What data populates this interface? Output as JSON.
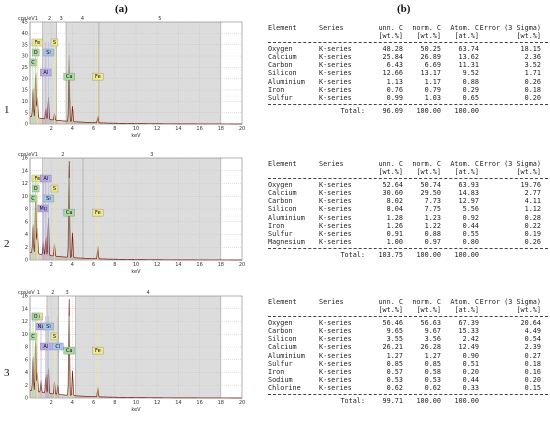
{
  "figure": {
    "col_a": "(a)",
    "col_b": "(b)",
    "row_labels": [
      "1",
      "2",
      "3"
    ]
  },
  "chart_data": [
    {
      "type": "line",
      "panel": "1",
      "ylabel": "cps/eV",
      "xlabel": "keV",
      "xlim": [
        0,
        20
      ],
      "ylim": [
        0,
        45
      ],
      "x_ticks": [
        2,
        4,
        6,
        8,
        10,
        12,
        14,
        16,
        18,
        20
      ],
      "y_ticks": [
        0,
        5,
        10,
        15,
        20,
        25,
        30,
        35,
        40,
        45
      ],
      "region_labels": [
        "1",
        "2",
        "3",
        "4",
        "5"
      ],
      "region_bounds": [
        0,
        1.2,
        2.5,
        3.4,
        6.5,
        18
      ],
      "element_tags": [
        "Fe",
        "O",
        "C",
        "Al",
        "S",
        "Si",
        "Ca",
        "Fe"
      ],
      "peaks": [
        {
          "x": 0.28,
          "y": 14
        },
        {
          "x": 0.53,
          "y": 22
        },
        {
          "x": 0.7,
          "y": 9
        },
        {
          "x": 1.49,
          "y": 5
        },
        {
          "x": 1.74,
          "y": 10
        },
        {
          "x": 2.31,
          "y": 3
        },
        {
          "x": 3.69,
          "y": 30
        },
        {
          "x": 4.01,
          "y": 7
        },
        {
          "x": 6.4,
          "y": 3
        }
      ]
    },
    {
      "type": "line",
      "panel": "2",
      "ylabel": "cps/eV",
      "xlabel": "keV",
      "xlim": [
        0,
        20
      ],
      "ylim": [
        0,
        16
      ],
      "x_ticks": [
        2,
        4,
        6,
        8,
        10,
        12,
        14,
        16,
        18,
        20
      ],
      "y_ticks": [
        0,
        2,
        4,
        6,
        8,
        10,
        12,
        14,
        16
      ],
      "region_labels": [
        "1",
        "2",
        "3"
      ],
      "region_bounds": [
        0,
        1.2,
        5.0,
        18
      ],
      "element_tags": [
        "Fe",
        "O",
        "C",
        "Mg",
        "Al",
        "S",
        "Si",
        "Ca",
        "Fe"
      ],
      "peaks": [
        {
          "x": 0.28,
          "y": 5
        },
        {
          "x": 0.53,
          "y": 10
        },
        {
          "x": 0.7,
          "y": 4
        },
        {
          "x": 1.25,
          "y": 2
        },
        {
          "x": 1.49,
          "y": 3
        },
        {
          "x": 1.74,
          "y": 6
        },
        {
          "x": 2.31,
          "y": 2
        },
        {
          "x": 3.69,
          "y": 15.5
        },
        {
          "x": 4.01,
          "y": 4
        },
        {
          "x": 6.4,
          "y": 2
        }
      ]
    },
    {
      "type": "line",
      "panel": "3",
      "ylabel": "cps/eV",
      "xlabel": "keV",
      "xlim": [
        0,
        20
      ],
      "ylim": [
        0,
        16
      ],
      "x_ticks": [
        2,
        4,
        6,
        8,
        10,
        12,
        14,
        16,
        18,
        20
      ],
      "y_ticks": [
        0,
        2,
        4,
        6,
        8,
        10,
        12,
        14,
        16
      ],
      "region_labels": [
        "1",
        "2",
        "3",
        "4"
      ],
      "region_bounds": [
        0,
        1.6,
        2.7,
        4.3,
        18
      ],
      "element_tags": [
        "Fe",
        "Na",
        "C",
        "Al",
        "O",
        "Si",
        "S",
        "Cl",
        "Ca",
        "Fe"
      ],
      "peaks": [
        {
          "x": 0.28,
          "y": 6
        },
        {
          "x": 0.53,
          "y": 9
        },
        {
          "x": 0.7,
          "y": 3
        },
        {
          "x": 1.04,
          "y": 2
        },
        {
          "x": 1.49,
          "y": 3
        },
        {
          "x": 1.74,
          "y": 4
        },
        {
          "x": 2.31,
          "y": 2
        },
        {
          "x": 2.62,
          "y": 1.5
        },
        {
          "x": 3.69,
          "y": 15.5
        },
        {
          "x": 4.01,
          "y": 4
        },
        {
          "x": 6.4,
          "y": 1.5
        }
      ]
    }
  ],
  "tables": [
    {
      "header": [
        "Element",
        "Series",
        "unn. C",
        "norm. C",
        "Atom. C",
        "Error (3 Sigma)"
      ],
      "units": [
        "",
        "",
        "[wt.%]",
        "[wt.%]",
        "[at.%]",
        "[wt.%]"
      ],
      "rows": [
        [
          "Oxygen",
          "K-series",
          "48.28",
          "50.25",
          "63.74",
          "18.15"
        ],
        [
          "Calcium",
          "K-series",
          "25.84",
          "26.89",
          "13.62",
          "2.36"
        ],
        [
          "Carbon",
          "K-series",
          "6.43",
          "6.69",
          "11.31",
          "3.52"
        ],
        [
          "Silicon",
          "K-series",
          "12.66",
          "13.17",
          "9.52",
          "1.71"
        ],
        [
          "Aluminium",
          "K-series",
          "1.13",
          "1.17",
          "0.88",
          "0.26"
        ],
        [
          "Iron",
          "K-series",
          "0.76",
          "0.79",
          "0.29",
          "0.18"
        ],
        [
          "Sulfur",
          "K-series",
          "0.99",
          "1.03",
          "0.65",
          "0.20"
        ]
      ],
      "total": [
        "Total:",
        "96.09",
        "100.00",
        "100.00"
      ]
    },
    {
      "header": [
        "Element",
        "Series",
        "unn. C",
        "norm. C",
        "Atom. C",
        "Error (3 Sigma)"
      ],
      "units": [
        "",
        "",
        "[wt.%]",
        "[wt.%]",
        "[at.%]",
        "[wt.%]"
      ],
      "rows": [
        [
          "Oxygen",
          "K-series",
          "52.64",
          "50.74",
          "63.93",
          "19.76"
        ],
        [
          "Calcium",
          "K-series",
          "30.60",
          "29.50",
          "14.83",
          "2.77"
        ],
        [
          "Carbon",
          "K-series",
          "8.02",
          "7.73",
          "12.97",
          "4.11"
        ],
        [
          "Silicon",
          "K-series",
          "8.04",
          "7.75",
          "5.56",
          "1.12"
        ],
        [
          "Aluminium",
          "K-series",
          "1.28",
          "1.23",
          "0.92",
          "0.28"
        ],
        [
          "Iron",
          "K-series",
          "1.26",
          "1.22",
          "0.44",
          "0.22"
        ],
        [
          "Sulfur",
          "K-series",
          "0.91",
          "0.88",
          "0.55",
          "0.19"
        ],
        [
          "Magnesium",
          "K-series",
          "1.00",
          "0.97",
          "0.80",
          "0.26"
        ]
      ],
      "total": [
        "Total:",
        "103.75",
        "100.00",
        "100.00"
      ]
    },
    {
      "header": [
        "Element",
        "Series",
        "unn. C",
        "norm. C",
        "Atom. C",
        "Error (3 Sigma)"
      ],
      "units": [
        "",
        "",
        "[wt.%]",
        "[wt.%]",
        "[at.%]",
        "[wt.%]"
      ],
      "rows": [
        [
          "Oxygen",
          "K-series",
          "56.46",
          "56.63",
          "67.39",
          "20.64"
        ],
        [
          "Carbon",
          "K-series",
          "9.65",
          "9.67",
          "15.33",
          "4.49"
        ],
        [
          "Silicon",
          "K-series",
          "3.55",
          "3.56",
          "2.42",
          "0.54"
        ],
        [
          "Calcium",
          "K-series",
          "26.21",
          "26.28",
          "12.49",
          "2.39"
        ],
        [
          "Aluminium",
          "K-series",
          "1.27",
          "1.27",
          "0.90",
          "0.27"
        ],
        [
          "Sulfur",
          "K-series",
          "0.85",
          "0.85",
          "0.51",
          "0.18"
        ],
        [
          "Iron",
          "K-series",
          "0.57",
          "0.58",
          "0.20",
          "0.16"
        ],
        [
          "Sodium",
          "K-series",
          "0.53",
          "0.53",
          "0.44",
          "0.20"
        ],
        [
          "Chlorine",
          "K-series",
          "0.62",
          "0.62",
          "0.33",
          "0.15"
        ]
      ],
      "total": [
        "Total:",
        "99.71",
        "100.00",
        "100.00"
      ]
    }
  ],
  "colors": {
    "spectrum": "#7a1a0e",
    "spectrum_fill": "#b9aa98",
    "region_band": "#dcdcdc",
    "region_line": "#9a9a9a",
    "grid": "#bdbdbd",
    "tag_yellow": "#f0e68c",
    "tag_purple": "#b7a6e8",
    "tag_green": "#a9d7a1",
    "tag_blue": "#a9c4ea"
  }
}
